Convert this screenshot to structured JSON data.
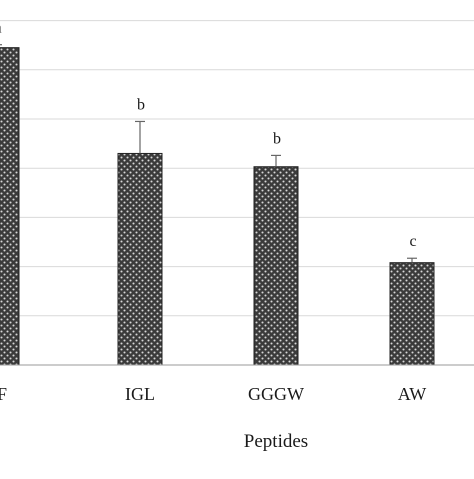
{
  "chart_data": {
    "type": "bar",
    "categories": [
      "PF",
      "IGL",
      "GGGW",
      "AW"
    ],
    "tick_labels": [
      "PF",
      "IGL",
      "GGGW",
      "AW"
    ],
    "values": [
      64.5,
      43.0,
      40.3,
      20.8
    ],
    "error": [
      0.6,
      6.5,
      2.3,
      0.9
    ],
    "significance_labels": [
      "a",
      "b",
      "b",
      "c"
    ],
    "xlabel": "Peptides",
    "ylabel": "",
    "ylim": [
      0,
      74
    ],
    "grid": "horizontal",
    "bar_fill": "crosshatch pattern (dark)",
    "colors": {
      "bar_base": "#3a3a3a",
      "bar_dots": "#d6d6d6",
      "bar_edge": "#222222",
      "grid": "#d9d9d9",
      "axis": "#9a9a9a",
      "text": "#1a1a1a"
    }
  }
}
